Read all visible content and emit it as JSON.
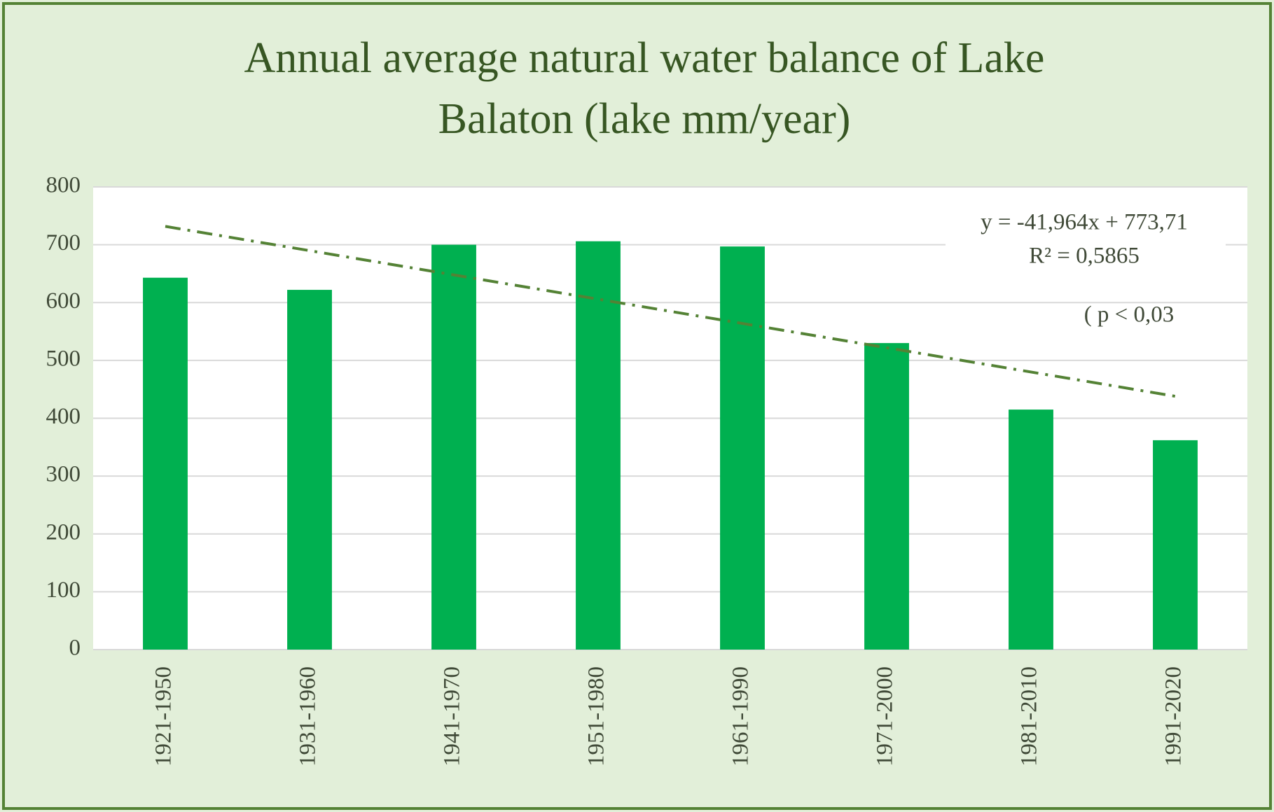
{
  "chart_data": {
    "type": "bar",
    "title": [
      "Annual average natural water balance of Lake",
      "Balaton (lake mm/year)"
    ],
    "categories": [
      "1921-1950",
      "1931-1960",
      "1941-1970",
      "1951-1980",
      "1961-1990",
      "1971-2000",
      "1981-2010",
      "1991-2020"
    ],
    "values": [
      643,
      622,
      700,
      706,
      697,
      530,
      415,
      362
    ],
    "color": "#00b050",
    "ylim": [
      0,
      800
    ],
    "yticks": [
      0,
      100,
      200,
      300,
      400,
      500,
      600,
      700,
      800
    ],
    "grid": true,
    "trendline": {
      "slope": -41.964,
      "intercept": 773.71,
      "color": "#548235",
      "equation": "y = -41,964x + 773,71",
      "r2": "R² = 0,5865",
      "p": "( p < 0,03"
    }
  }
}
